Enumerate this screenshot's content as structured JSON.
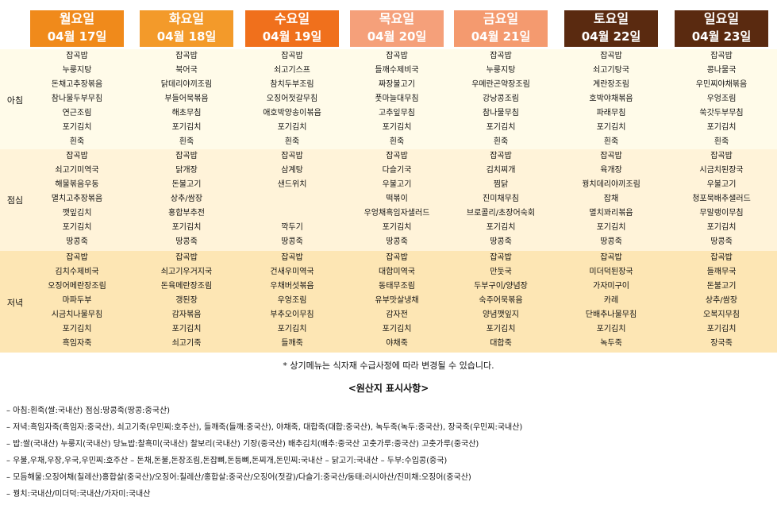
{
  "days": [
    {
      "day": "월요일",
      "date": "04월 17일",
      "color": "#f08a1b"
    },
    {
      "day": "화요일",
      "date": "04월 18일",
      "color": "#f39a2a"
    },
    {
      "day": "수요일",
      "date": "04월 19일",
      "color": "#f0701c"
    },
    {
      "day": "목요일",
      "date": "04월 20일",
      "color": "#f5a07a"
    },
    {
      "day": "금요일",
      "date": "04월 21일",
      "color": "#f49a6f"
    },
    {
      "day": "토요일",
      "date": "04월 22일",
      "color": "#5a2a10"
    },
    {
      "day": "일요일",
      "date": "04월 23일",
      "color": "#5a2a10"
    }
  ],
  "meal_labels": {
    "breakfast": "아침",
    "lunch": "점심",
    "dinner": "저녁"
  },
  "menu": [
    {
      "breakfast": [
        "잡곡밥",
        "누룽지탕",
        "돈채고추장볶음",
        "참나물두부무침",
        "연근조림",
        "포기김치",
        "흰죽"
      ],
      "lunch": [
        "잡곡밥",
        "쇠고기미역국",
        "해물볶음우동",
        "멸치고추장볶음",
        "깻잎김치",
        "포기김치",
        "땅콩죽"
      ],
      "dinner": [
        "잡곡밥",
        "김치수제비국",
        "오징어메란장조림",
        "마파두부",
        "시금치나물무침",
        "포기김치",
        "흑임자죽"
      ]
    },
    {
      "breakfast": [
        "잡곡밥",
        "북어국",
        "닭데리야끼조림",
        "부들어묵볶음",
        "해초무침",
        "포기김치",
        "흰죽"
      ],
      "lunch": [
        "잡곡밥",
        "닭개장",
        "돈불고기",
        "상추/쌈장",
        "홍합부추전",
        "포기김치",
        "땅콩죽"
      ],
      "dinner": [
        "잡곡밥",
        "쇠고기우거지국",
        "돈육메란장조림",
        "갱된장",
        "감자볶음",
        "포기김치",
        "쇠고기죽"
      ]
    },
    {
      "breakfast": [
        "잡곡밥",
        "쇠고기스프",
        "참치두부조림",
        "오징어젓갈무침",
        "애호박양송이볶음",
        "포기김치",
        "흰죽"
      ],
      "lunch": [
        "잡곡밥",
        "삼계탕",
        "샌드위치",
        "",
        "",
        "깍두기",
        "땅콩죽"
      ],
      "dinner": [
        "잡곡밥",
        "건새우미역국",
        "우채버섯볶음",
        "우엉조림",
        "부추오이무침",
        "포기김치",
        "들깨죽"
      ]
    },
    {
      "breakfast": [
        "잡곡밥",
        "들깨수제비국",
        "짜장불고기",
        "풋마늘대무침",
        "고추잎무침",
        "포기김치",
        "흰죽"
      ],
      "lunch": [
        "잡곡밥",
        "다슬기국",
        "우불고기",
        "떡볶이",
        "우엉채흑임자샐러드",
        "포기김치",
        "땅콩죽"
      ],
      "dinner": [
        "잡곡밥",
        "대합미역국",
        "동태무조림",
        "유부맛살냉채",
        "감자전",
        "포기김치",
        "야채죽"
      ]
    },
    {
      "breakfast": [
        "잡곡밥",
        "누룽지탕",
        "우메란곤약장조림",
        "강낭콩조림",
        "참나물무침",
        "포기김치",
        "흰죽"
      ],
      "lunch": [
        "잡곡밥",
        "김치찌개",
        "찜닭",
        "진미채무침",
        "브로콜리/초장어숙회",
        "포기김치",
        "땅콩죽"
      ],
      "dinner": [
        "잡곡밥",
        "만둣국",
        "두부구이/양념장",
        "숙주어묵볶음",
        "양념깻잎지",
        "포기김치",
        "대합죽"
      ]
    },
    {
      "breakfast": [
        "잡곡밥",
        "쇠고기탕국",
        "계란장조림",
        "호박야채볶음",
        "파래무침",
        "포기김치",
        "흰죽"
      ],
      "lunch": [
        "잡곡밥",
        "육개장",
        "꿩치데리야끼조림",
        "잡채",
        "멸치꽈리볶음",
        "포기김치",
        "땅콩죽"
      ],
      "dinner": [
        "잡곡밥",
        "미더덕된장국",
        "가자미구이",
        "카레",
        "단배추나물무침",
        "포기김치",
        "녹두죽"
      ]
    },
    {
      "breakfast": [
        "잡곡밥",
        "콩나물국",
        "우민찌야채볶음",
        "우엉조림",
        "쑥갓두부무침",
        "포기김치",
        "흰죽"
      ],
      "lunch": [
        "잡곡밥",
        "시금치된장국",
        "우불고기",
        "청포묵배추샐러드",
        "무말랭이무침",
        "포기김치",
        "땅콩죽"
      ],
      "dinner": [
        "잡곡밥",
        "들깨무국",
        "돈불고기",
        "상추/쌈장",
        "오복지무침",
        "포기김치",
        "장국죽"
      ]
    }
  ],
  "note": "* 상기메뉴는 식자재 수급사정에 따라 변경될 수 있습니다.",
  "origin_title": "<원산지 표시사항>",
  "origin_lines": [
    "– 아침:흰죽(쌀:국내산)  점심:땅콩죽(땅콩:중국산)",
    "– 저녁:흑임자죽(흑임자:중국산), 쇠고기죽(우민찌:호주산), 들깨죽(들깨:중국산), 야채죽, 대합죽(대합:중국산), 녹두죽(녹두:중국산), 장국죽(우민찌:국내산)",
    "– 밥:쌀(국내산)  누룽지(국내산)  당뇨밥:찰흑미(국내산)  찰보리(국내산)  기장(중국산)  배추김치(배추:중국산 고춧가루:중국산)  고춧가루(중국산)",
    "– 우불,우채,우장,우국,우민찌:호주산   –  돈채,돈불,돈장조림,돈잡뼈,돈등뼈,돈찌개,돈민찌:국내산   –  닭고기:국내산   –  두부:수입콩(중국)",
    "– 모듬해물:오징어채(칠레산)홍합살(중국산)/오징어:칠레산/홍합살:중국산/오징어(젓갈)/다슬기:중국산/동태:러시아산/진미채:오징어(중국산)",
    "– 꿩치:국내산/미더덕:국내산/가자미:국내산"
  ]
}
